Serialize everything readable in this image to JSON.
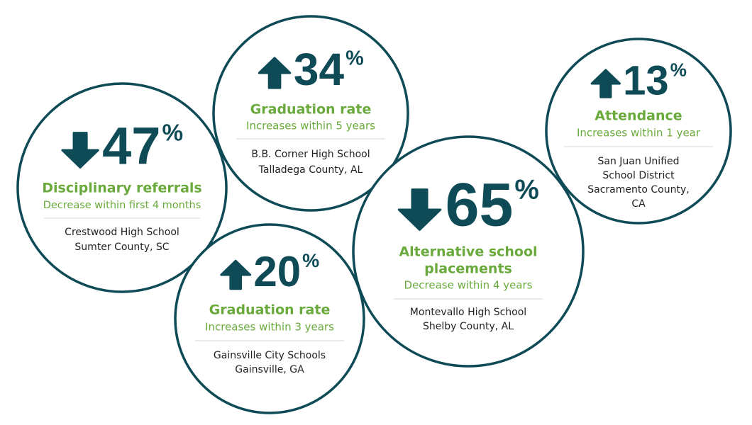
{
  "items": [
    {
      "direction": "down",
      "value": 47,
      "unit": "%",
      "metric": [
        "Disciplinary referrals"
      ],
      "change": "Decrease within first 4 months",
      "location": [
        "Crestwood High School",
        "Sumter County, SC"
      ]
    },
    {
      "direction": "up",
      "value": 34,
      "unit": "%",
      "metric": [
        "Graduation rate"
      ],
      "change": "Increases within 5 years",
      "location": [
        "B.B. Corner High School",
        "Talladega County, AL"
      ]
    },
    {
      "direction": "up",
      "value": 20,
      "unit": "%",
      "metric": [
        "Graduation rate"
      ],
      "change": "Increases within 3 years",
      "location": [
        "Gainsville City Schools",
        "Gainsville, GA"
      ]
    },
    {
      "direction": "up",
      "value": 13,
      "unit": "%",
      "metric": [
        "Attendance"
      ],
      "change": "Increases within 1 year",
      "location": [
        "San Juan Unified",
        "School District",
        "Sacramento County,",
        "CA"
      ]
    },
    {
      "direction": "down",
      "value": 65,
      "unit": "%",
      "metric": [
        "Alternative school",
        "placements"
      ],
      "change": "Decrease within 4 years",
      "location": [
        "Montevallo High School",
        "Shelby County, AL"
      ]
    }
  ]
}
